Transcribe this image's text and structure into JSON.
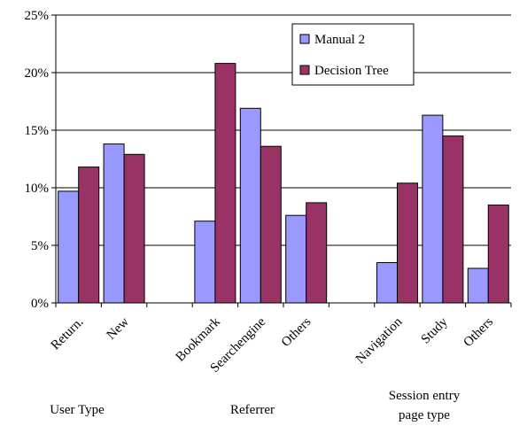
{
  "chart_data": {
    "type": "bar",
    "title": "",
    "xlabel": "",
    "ylabel": "",
    "ylim": [
      0,
      0.25
    ],
    "y_ticks": [
      "0%",
      "5%",
      "10%",
      "15%",
      "20%",
      "25%"
    ],
    "y_tick_values": [
      0,
      0.05,
      0.1,
      0.15,
      0.2,
      0.25
    ],
    "grid": "horizontal",
    "legend_position": "top-right",
    "categories": [
      "Return.",
      "New",
      "",
      "Bookmark",
      "Searchengine",
      "Others",
      "",
      "Navigation",
      "Study",
      "Others"
    ],
    "series": [
      {
        "name": "Manual 2",
        "color": "#9999ff",
        "values": [
          0.097,
          0.138,
          null,
          0.071,
          0.169,
          0.076,
          null,
          0.035,
          0.163,
          0.03
        ]
      },
      {
        "name": "Decision Tree",
        "color": "#993366",
        "values": [
          0.118,
          0.129,
          null,
          0.208,
          0.136,
          0.087,
          null,
          0.104,
          0.145,
          0.085
        ]
      }
    ],
    "groups": [
      {
        "label_lines": [
          "User Type"
        ]
      },
      {
        "label_lines": [
          "Referrer"
        ]
      },
      {
        "label_lines": [
          "Session entry",
          "page type"
        ]
      }
    ]
  }
}
